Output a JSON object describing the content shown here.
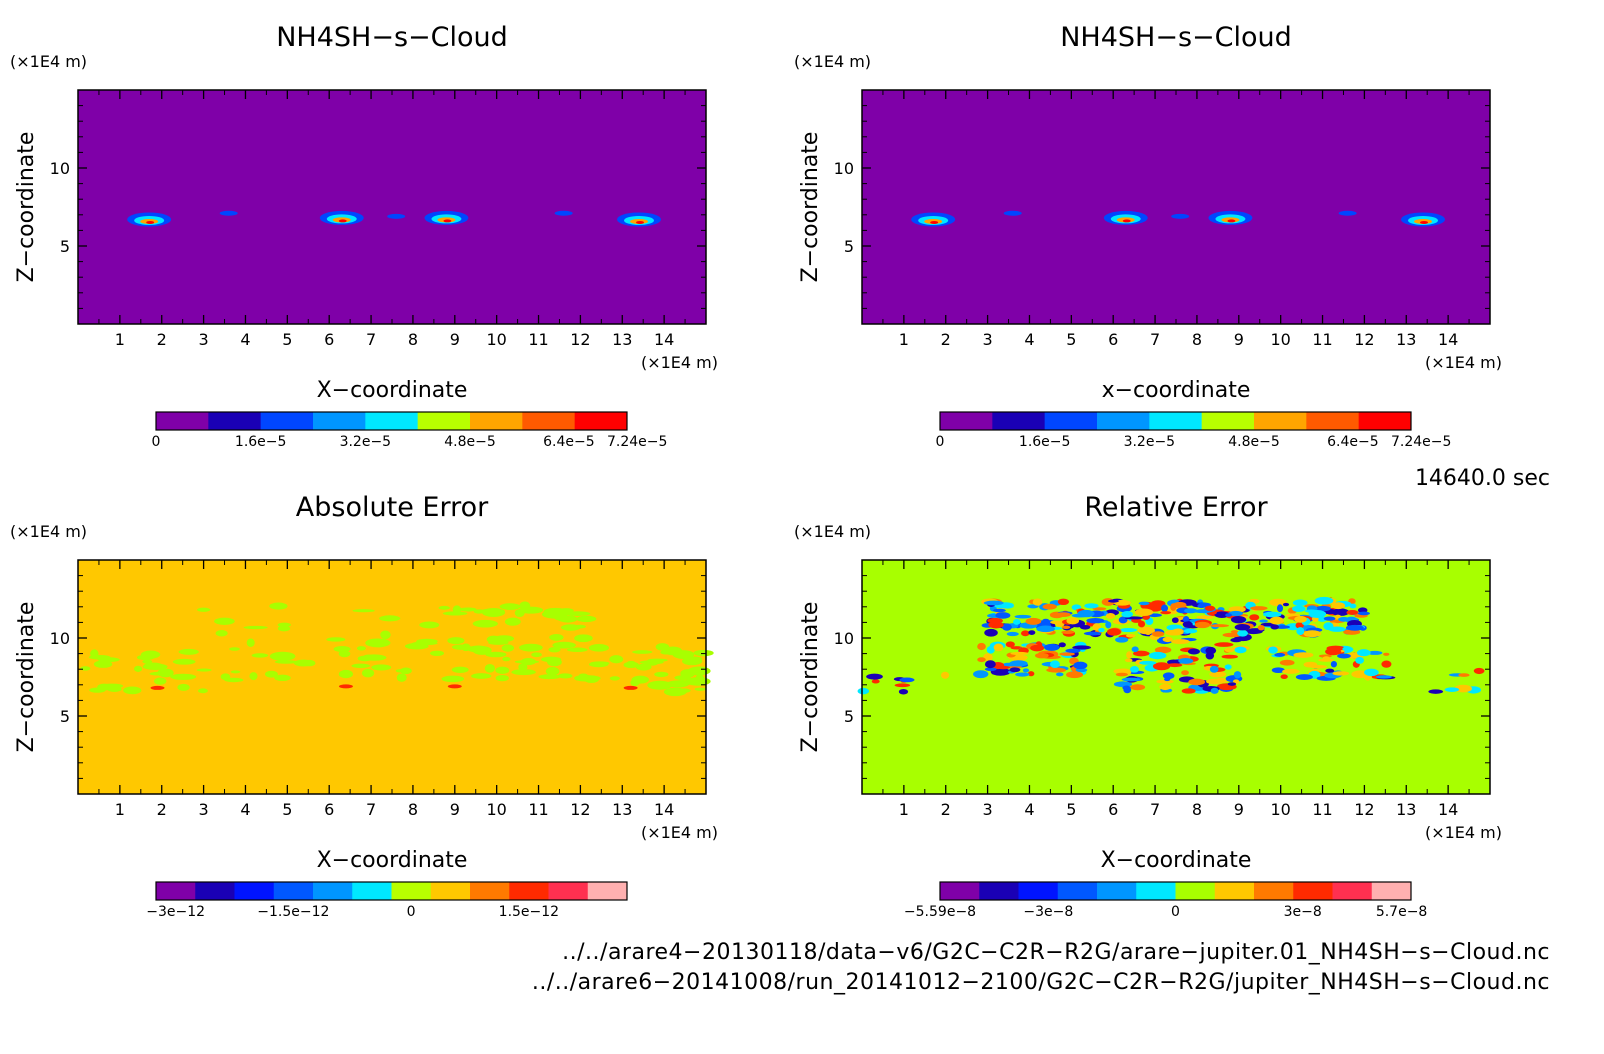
{
  "panels": [
    {
      "id": "top-left",
      "title": "NH4SH−s−Cloud",
      "x_unit": "(×1E4 m)",
      "y_unit": "(×1E4 m)",
      "xlabel": "X−coordinate",
      "ylabel": "Z−coordinate",
      "background_color": "#7f00a8",
      "colorbar": {
        "colors": [
          "#7f00a8",
          "#1a00b5",
          "#0046ff",
          "#0096ff",
          "#00e8ff",
          "#b8ff00",
          "#ffa500",
          "#ff5a00",
          "#ff0000"
        ],
        "labels": [
          "0",
          "1.6e−5",
          "3.2e−5",
          "4.8e−5",
          "6.4e−5",
          "7.24e−5"
        ]
      }
    },
    {
      "id": "top-right",
      "title": "NH4SH−s−Cloud",
      "x_unit": "(×1E4 m)",
      "y_unit": "(×1E4 m)",
      "xlabel": "x−coordinate",
      "ylabel": "Z−coordinate",
      "background_color": "#7f00a8",
      "colorbar": {
        "colors": [
          "#7f00a8",
          "#1a00b5",
          "#0046ff",
          "#0096ff",
          "#00e8ff",
          "#b8ff00",
          "#ffa500",
          "#ff5a00",
          "#ff0000"
        ],
        "labels": [
          "0",
          "1.6e−5",
          "3.2e−5",
          "4.8e−5",
          "6.4e−5",
          "7.24e−5"
        ]
      }
    },
    {
      "id": "bottom-left",
      "title": "Absolute Error",
      "x_unit": "(×1E4 m)",
      "y_unit": "(×1E4 m)",
      "xlabel": "X−coordinate",
      "ylabel": "Z−coordinate",
      "background_color": "#ffc800",
      "colorbar": {
        "colors": [
          "#7f00a8",
          "#1a00b5",
          "#0014ff",
          "#0058ff",
          "#0096ff",
          "#00e8ff",
          "#b8ff00",
          "#ffc800",
          "#ff7a00",
          "#ff2a00",
          "#ff3050",
          "#ffb0b0"
        ],
        "labels": [
          "−3e−12",
          "−1.5e−12",
          "0",
          "1.5e−12"
        ]
      }
    },
    {
      "id": "bottom-right",
      "title": "Relative Error",
      "x_unit": "(×1E4 m)",
      "y_unit": "(×1E4 m)",
      "xlabel": "X−coordinate",
      "ylabel": "Z−coordinate",
      "background_color": "#a8ff00",
      "colorbar": {
        "colors": [
          "#7f00a8",
          "#1a00b5",
          "#0014ff",
          "#0058ff",
          "#0096ff",
          "#00e8ff",
          "#a8ff00",
          "#ffc800",
          "#ff7a00",
          "#ff2a00",
          "#ff3050",
          "#ffb0b0"
        ],
        "labels": [
          "−5.59e−8",
          "−3e−8",
          "0",
          "3e−8",
          "5.7e−8"
        ]
      }
    }
  ],
  "timestamp": "14640.0 sec",
  "footer": {
    "line1": "../../arare4−20130118/data−v6/G2C−C2R−R2G/arare−jupiter.01_NH4SH−s−Cloud.nc",
    "line2": "../../arare6−20141008/run_20141012−2100/G2C−C2R−R2G/jupiter_NH4SH−s−Cloud.nc"
  },
  "chart_data": [
    {
      "type": "heatmap",
      "title": "NH4SH−s−Cloud",
      "xlabel": "X−coordinate",
      "ylabel": "Z−coordinate",
      "x_unit": "×1E4 m",
      "y_unit": "×1E4 m",
      "xlim": [
        0,
        15
      ],
      "ylim": [
        0,
        15
      ],
      "xticks": [
        1,
        2,
        3,
        4,
        5,
        6,
        7,
        8,
        9,
        10,
        11,
        12,
        13,
        14
      ],
      "yticks": [
        5,
        10
      ],
      "color_range": [
        0,
        7.24e-05
      ],
      "features": [
        {
          "x": 1.7,
          "z": 6.7,
          "value": 5e-05
        },
        {
          "x": 3.6,
          "z": 7.1,
          "value": 1.6e-05
        },
        {
          "x": 6.3,
          "z": 6.8,
          "value": 6e-05
        },
        {
          "x": 7.6,
          "z": 6.9,
          "value": 1.6e-05
        },
        {
          "x": 8.8,
          "z": 6.8,
          "value": 6e-05
        },
        {
          "x": 11.6,
          "z": 7.1,
          "value": 1.6e-05
        },
        {
          "x": 13.4,
          "z": 6.7,
          "value": 5e-05
        }
      ]
    },
    {
      "type": "heatmap",
      "title": "NH4SH−s−Cloud",
      "xlabel": "x−coordinate",
      "ylabel": "Z−coordinate",
      "x_unit": "×1E4 m",
      "y_unit": "×1E4 m",
      "xlim": [
        0,
        15
      ],
      "ylim": [
        0,
        15
      ],
      "xticks": [
        1,
        2,
        3,
        4,
        5,
        6,
        7,
        8,
        9,
        10,
        11,
        12,
        13,
        14
      ],
      "yticks": [
        5,
        10
      ],
      "color_range": [
        0,
        7.24e-05
      ],
      "features": [
        {
          "x": 1.7,
          "z": 6.7,
          "value": 5e-05
        },
        {
          "x": 3.6,
          "z": 7.1,
          "value": 1.6e-05
        },
        {
          "x": 6.3,
          "z": 6.8,
          "value": 6e-05
        },
        {
          "x": 7.6,
          "z": 6.9,
          "value": 1.6e-05
        },
        {
          "x": 8.8,
          "z": 6.8,
          "value": 6e-05
        },
        {
          "x": 11.6,
          "z": 7.1,
          "value": 1.6e-05
        },
        {
          "x": 13.4,
          "z": 6.7,
          "value": 5e-05
        }
      ]
    },
    {
      "type": "heatmap",
      "title": "Absolute Error",
      "xlabel": "X−coordinate",
      "ylabel": "Z−coordinate",
      "x_unit": "×1E4 m",
      "y_unit": "×1E4 m",
      "xlim": [
        0,
        15
      ],
      "ylim": [
        0,
        15
      ],
      "xticks": [
        1,
        2,
        3,
        4,
        5,
        6,
        7,
        8,
        9,
        10,
        11,
        12,
        13,
        14
      ],
      "yticks": [
        5,
        10
      ],
      "color_range": [
        -3e-12,
        3e-12
      ]
    },
    {
      "type": "heatmap",
      "title": "Relative Error",
      "xlabel": "X−coordinate",
      "ylabel": "Z−coordinate",
      "x_unit": "×1E4 m",
      "y_unit": "×1E4 m",
      "xlim": [
        0,
        15
      ],
      "ylim": [
        0,
        15
      ],
      "xticks": [
        1,
        2,
        3,
        4,
        5,
        6,
        7,
        8,
        9,
        10,
        11,
        12,
        13,
        14
      ],
      "yticks": [
        5,
        10
      ],
      "color_range": [
        -5.59e-08,
        5.7e-08
      ]
    }
  ]
}
